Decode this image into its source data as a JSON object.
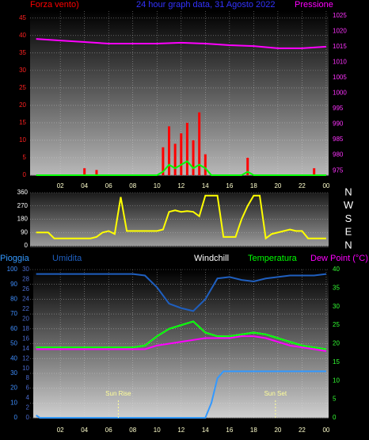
{
  "chart_data": [
    {
      "type": "line",
      "title": "24 hour graph data, 31 Agosto 2022",
      "grid": true,
      "x": [
        0,
        0.5,
        1,
        1.5,
        2,
        2.5,
        3,
        3.5,
        4,
        4.5,
        5,
        5.5,
        6,
        6.5,
        7,
        7.5,
        8,
        8.5,
        9,
        9.5,
        10,
        10.5,
        11,
        11.5,
        12,
        12.5,
        13,
        13.5,
        14,
        14.5,
        15,
        15.5,
        16,
        16.5,
        17,
        17.5,
        18,
        18.5,
        19,
        19.5,
        20,
        20.5,
        21,
        21.5,
        22,
        22.5,
        23,
        23.5,
        24
      ],
      "xlim": [
        -0.5,
        24.2
      ],
      "xticks": [
        {
          "value": 2,
          "label": "02"
        },
        {
          "value": 4,
          "label": "04"
        },
        {
          "value": 6,
          "label": "06"
        },
        {
          "value": 8,
          "label": "08"
        },
        10,
        12,
        14,
        16,
        18,
        20,
        22,
        {
          "value": 24,
          "label": "00"
        }
      ],
      "ylim": [
        0,
        47
      ],
      "yticks": [
        0,
        5,
        10,
        15,
        20,
        25,
        30,
        35,
        40,
        45
      ],
      "y2lim": [
        973.5,
        1026.5
      ],
      "y2ticks": [
        975,
        980,
        985,
        990,
        995,
        1000,
        1005,
        1010,
        1015,
        1020,
        1025
      ],
      "series": [
        {
          "name": "Forza vento)",
          "type": "bar",
          "color": "#ff0000",
          "values": [
            0,
            0,
            0,
            0,
            0,
            0,
            0,
            0,
            2,
            0,
            1.5,
            0,
            0,
            0,
            0,
            0,
            0,
            0,
            0,
            0,
            0,
            8,
            14,
            9,
            12,
            15,
            10,
            18,
            6,
            0,
            0,
            0,
            0,
            0,
            0,
            5,
            0,
            0,
            0,
            0,
            0,
            0,
            0,
            0,
            0,
            0,
            2,
            0,
            0
          ]
        },
        {
          "type": "line",
          "color": "#00ff00",
          "values": [
            0,
            0,
            0,
            0,
            0,
            0,
            0,
            0,
            0,
            0,
            0,
            0,
            0,
            0,
            0,
            0,
            0,
            0,
            0,
            0,
            0,
            1,
            3,
            2,
            3,
            4,
            2,
            3,
            2,
            0,
            0,
            0,
            0,
            0,
            0,
            1,
            0,
            0,
            0,
            0,
            0,
            0,
            0,
            0,
            0,
            0,
            0,
            0,
            0
          ]
        },
        {
          "name": "Pressione",
          "type": "line",
          "color": "#ff00ff",
          "axis": "y2",
          "x": [
            0,
            2,
            4,
            6,
            8,
            10,
            12,
            14,
            16,
            18,
            20,
            22,
            24
          ],
          "values": [
            1017.5,
            1017,
            1016.5,
            1016,
            1016,
            1016,
            1016.3,
            1016,
            1015.5,
            1015.2,
            1014.5,
            1014.5,
            1015
          ]
        }
      ]
    },
    {
      "type": "line",
      "grid": true,
      "x": [
        0,
        0.5,
        1,
        1.5,
        2,
        2.5,
        3,
        3.5,
        4,
        4.5,
        5,
        5.5,
        6,
        6.5,
        7,
        7.5,
        8,
        8.5,
        9,
        9.5,
        10,
        10.5,
        11,
        11.5,
        12,
        12.5,
        13,
        13.5,
        14,
        14.5,
        15,
        15.5,
        16,
        16.5,
        17,
        17.5,
        18,
        18.5,
        19,
        19.5,
        20,
        20.5,
        21,
        21.5,
        22,
        22.5,
        23,
        23.5,
        24
      ],
      "xlim": [
        -0.5,
        24.2
      ],
      "ylim": [
        0,
        360
      ],
      "yticks": [
        0,
        90,
        180,
        270,
        360
      ],
      "y2lim": [
        0,
        360
      ],
      "y2ticks": [
        {
          "value": 0,
          "label": "N"
        },
        {
          "value": 90,
          "label": "E"
        },
        {
          "value": 180,
          "label": "S"
        },
        {
          "value": 270,
          "label": "W"
        },
        {
          "value": 360,
          "label": "N"
        }
      ],
      "series": [
        {
          "type": "line",
          "color": "#ffff00",
          "values": [
            90,
            90,
            90,
            50,
            50,
            50,
            50,
            50,
            50,
            50,
            60,
            90,
            100,
            80,
            330,
            100,
            100,
            100,
            100,
            100,
            100,
            110,
            230,
            240,
            230,
            235,
            230,
            200,
            340,
            340,
            340,
            60,
            60,
            60,
            180,
            270,
            340,
            340,
            50,
            80,
            90,
            100,
            110,
            100,
            100,
            50,
            50,
            50,
            50
          ]
        }
      ]
    },
    {
      "type": "line",
      "grid": true,
      "x": [
        0,
        1,
        2,
        3,
        4,
        5,
        6,
        7,
        8,
        9,
        10,
        11,
        12,
        13,
        14,
        15,
        16,
        17,
        18,
        19,
        20,
        21,
        22,
        23,
        24
      ],
      "xlim": [
        -0.5,
        24.2
      ],
      "xticks": [
        {
          "value": 2,
          "label": "02"
        },
        {
          "value": 4,
          "label": "04"
        },
        {
          "value": 6,
          "label": "06"
        },
        {
          "value": 8,
          "label": "08"
        },
        10,
        12,
        14,
        16,
        18,
        20,
        22,
        {
          "value": 24,
          "label": "00"
        }
      ],
      "ylim": [
        0,
        100
      ],
      "yticks": [
        0,
        10,
        20,
        30,
        40,
        50,
        60,
        70,
        80,
        90,
        100
      ],
      "y3lim": [
        0,
        30
      ],
      "y3ticks": [
        0,
        2,
        4,
        6,
        8,
        10,
        12,
        14,
        16,
        18,
        20,
        22,
        24,
        26,
        28,
        30
      ],
      "y2lim": [
        0,
        40
      ],
      "y2ticks": [
        0,
        5,
        10,
        15,
        20,
        25,
        30,
        35,
        40
      ],
      "series": [
        {
          "name": "Umidita",
          "type": "line",
          "color": "#1f5fbf",
          "values": [
            97,
            97,
            97,
            97,
            97,
            97,
            97,
            97,
            97,
            96,
            88,
            77,
            74,
            72,
            80,
            94,
            95,
            93,
            92,
            94,
            95,
            96,
            96,
            96,
            97
          ]
        },
        {
          "name": "Pioggia",
          "type": "line",
          "color": "#3399ff",
          "axis": "y3",
          "x": [
            0,
            0.3,
            14,
            14.5,
            15,
            15.5,
            24
          ],
          "values": [
            0.5,
            0,
            0,
            3,
            8,
            9.4,
            9.4
          ]
        },
        {
          "name": "Windchill",
          "type": "line",
          "color": "#ffffff",
          "axis": "y2",
          "values": [
            19,
            19,
            19,
            19,
            19,
            19,
            19,
            19,
            19,
            19.5,
            22,
            24,
            25,
            26,
            23,
            22,
            22,
            22.5,
            23,
            22.5,
            21.5,
            20.5,
            19.5,
            19,
            18.5
          ]
        },
        {
          "name": "Temperatura",
          "type": "line",
          "color": "#00ff00",
          "axis": "y2",
          "values": [
            19,
            19,
            19,
            19,
            19,
            19,
            19,
            19,
            19,
            19.5,
            22,
            24,
            25,
            26,
            23,
            22,
            22,
            22.5,
            23,
            22.5,
            21.5,
            20.5,
            19.5,
            19,
            18.5
          ]
        },
        {
          "name": "Dew Point (°C)",
          "type": "line",
          "color": "#ff00ff",
          "axis": "y2",
          "values": [
            18.5,
            18.5,
            18.5,
            18.5,
            18.5,
            18.5,
            18.5,
            18.5,
            18.5,
            18.5,
            19.5,
            20,
            20.5,
            21,
            21.5,
            21.5,
            21.5,
            22,
            22,
            21.5,
            20.5,
            19.5,
            19,
            18.5,
            18
          ]
        }
      ],
      "annotations": [
        {
          "text": "Sun Rise",
          "x": 6.8
        },
        {
          "text": "Sun Set",
          "x": 19.8
        }
      ]
    }
  ]
}
